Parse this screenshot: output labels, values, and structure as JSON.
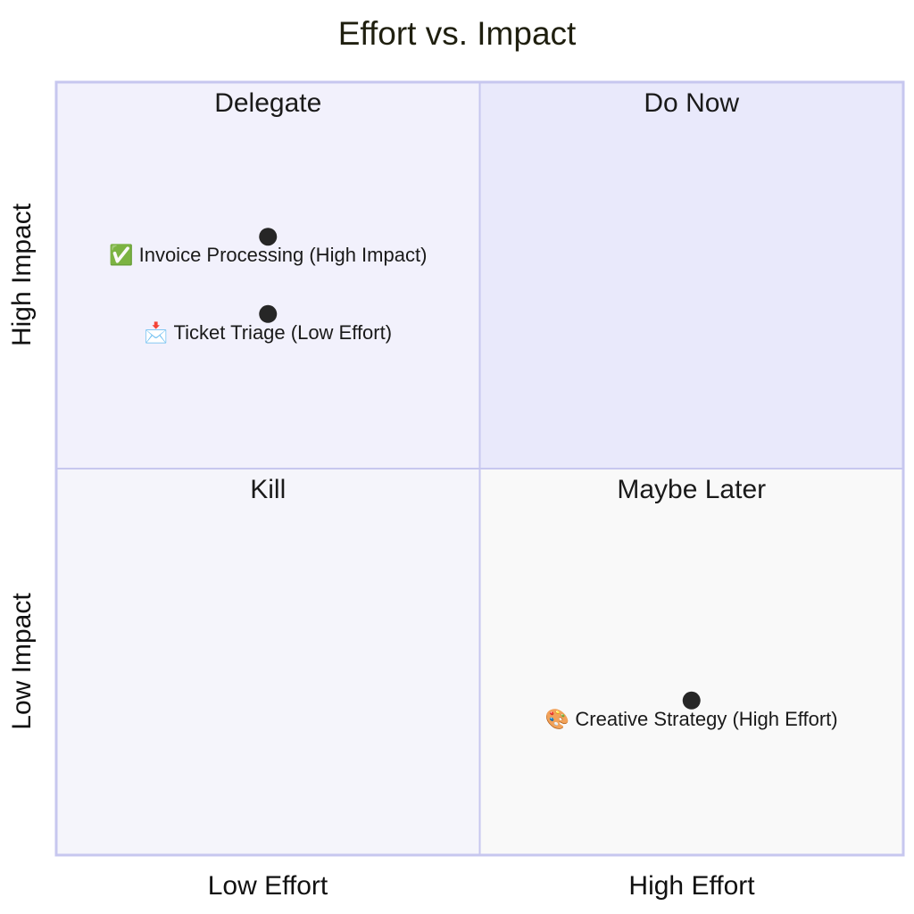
{
  "chart_data": {
    "type": "scatter",
    "title": "Effort vs. Impact",
    "x_axis": {
      "low_label": "Low Effort",
      "high_label": "High Effort",
      "range": [
        0,
        1
      ]
    },
    "y_axis": {
      "low_label": "Low Impact",
      "high_label": "High Impact",
      "range": [
        0,
        1
      ]
    },
    "quadrants": [
      {
        "id": "delegate",
        "label": "Delegate",
        "position": "top-left",
        "fill": "#f2f1fc"
      },
      {
        "id": "do-now",
        "label": "Do Now",
        "position": "top-right",
        "fill": "#e9e9fb"
      },
      {
        "id": "kill",
        "label": "Kill",
        "position": "bottom-left",
        "fill": "#f5f5fb"
      },
      {
        "id": "maybe-later",
        "label": "Maybe Later",
        "position": "bottom-right",
        "fill": "#f9f9f9"
      }
    ],
    "points": [
      {
        "label": "✅ Invoice Processing (High Impact)",
        "x": 0.25,
        "y": 0.8
      },
      {
        "label": "📩 Ticket Triage (Low Effort)",
        "x": 0.25,
        "y": 0.7
      },
      {
        "label": "🎨 Creative Strategy (High Effort)",
        "x": 0.75,
        "y": 0.2
      }
    ],
    "colors": {
      "border": "#c7c7ef",
      "point": "#262626",
      "text": "#1a1a1a",
      "title": "#1f1f0f"
    }
  }
}
